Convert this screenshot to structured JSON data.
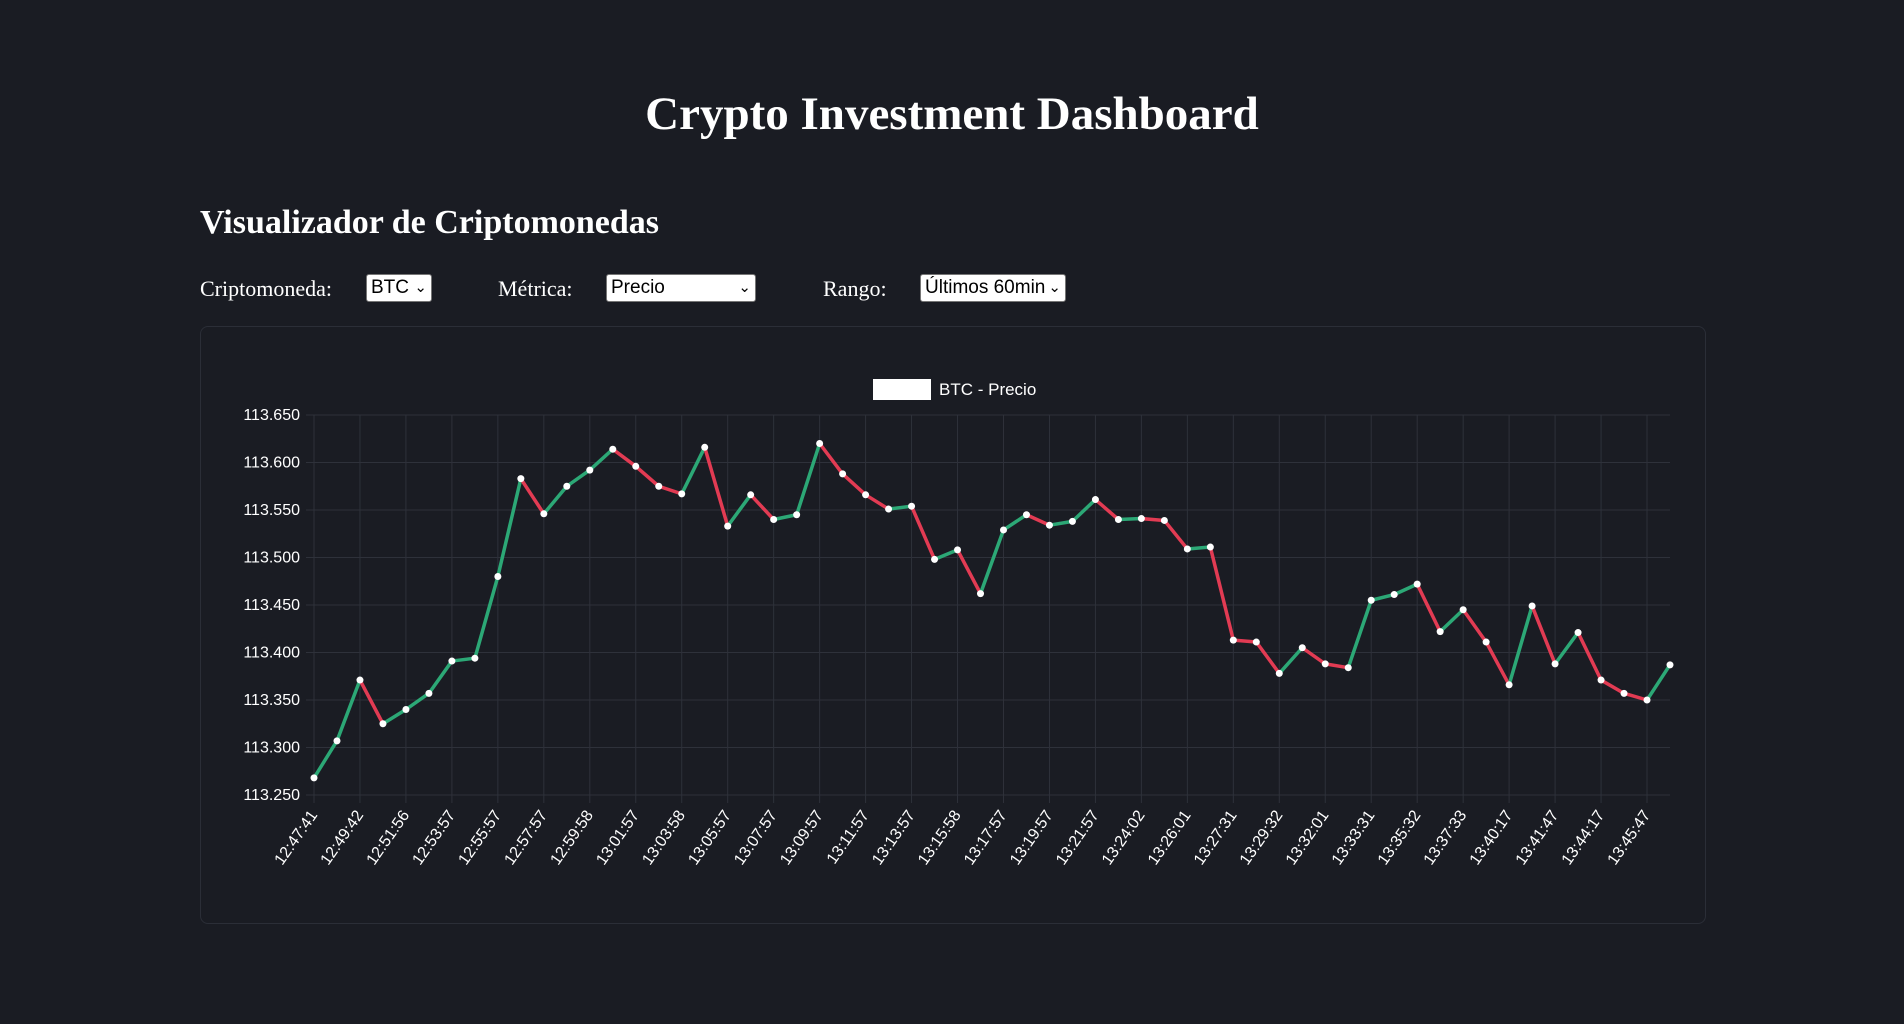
{
  "header": {
    "title": "Crypto Investment Dashboard"
  },
  "section": {
    "title": "Visualizador de Criptomonedas"
  },
  "controls": {
    "crypto_label": "Criptomoneda:",
    "crypto_value": "BTC",
    "metric_label": "Métrica:",
    "metric_value": "Precio",
    "range_label": "Rango:",
    "range_value": "Últimos 60min"
  },
  "colors": {
    "background": "#1a1c23",
    "up": "#2ca876",
    "down": "#e23b53",
    "point": "#ffffff",
    "grid": "#2e313a"
  },
  "chart_data": {
    "type": "line",
    "legend": [
      "BTC - Precio"
    ],
    "legend_position": "top-center",
    "grid": true,
    "ylim": [
      113250,
      113650
    ],
    "y_ticks": [
      "113.250",
      "113.300",
      "113.350",
      "113.400",
      "113.450",
      "113.500",
      "113.550",
      "113.600",
      "113.650"
    ],
    "x_tick_labels": [
      "12:47:41",
      "12:49:42",
      "12:51:56",
      "12:53:57",
      "12:55:57",
      "12:57:57",
      "12:59:58",
      "13:01:57",
      "13:03:58",
      "13:05:57",
      "13:07:57",
      "13:09:57",
      "13:11:57",
      "13:13:57",
      "13:15:58",
      "13:17:57",
      "13:19:57",
      "13:21:57",
      "13:24:02",
      "13:26:01",
      "13:27:31",
      "13:29:32",
      "13:32:01",
      "13:33:31",
      "13:35:32",
      "13:37:33",
      "13:40:17",
      "13:41:47",
      "13:44:17",
      "13:45:47"
    ],
    "series": [
      {
        "name": "BTC - Precio",
        "values": [
          113268,
          113307,
          113371,
          113325,
          113340,
          113357,
          113391,
          113394,
          113480,
          113583,
          113546,
          113575,
          113592,
          113614,
          113596,
          113575,
          113567,
          113616,
          113533,
          113566,
          113540,
          113545,
          113620,
          113588,
          113566,
          113551,
          113554,
          113498,
          113508,
          113462,
          113529,
          113545,
          113534,
          113538,
          113561,
          113540,
          113541,
          113539,
          113509,
          113511,
          113413,
          113411,
          113378,
          113405,
          113388,
          113384,
          113455,
          113461,
          113472,
          113422,
          113445,
          113411,
          113366,
          113449,
          113388,
          113421,
          113371,
          113357,
          113350,
          113387
        ]
      }
    ]
  }
}
